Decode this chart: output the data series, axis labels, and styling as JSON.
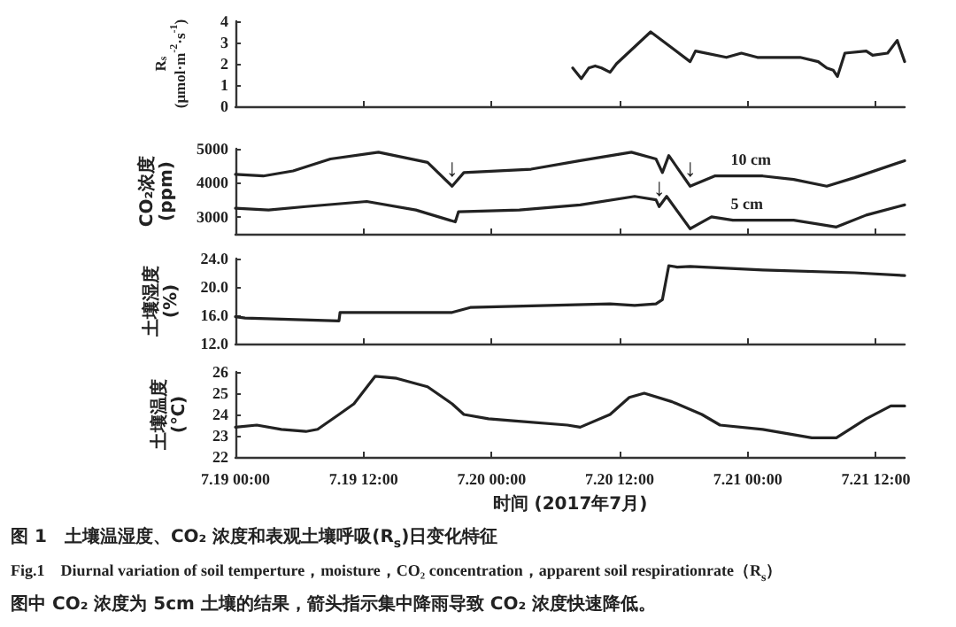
{
  "chart_data": [
    {
      "type": "line",
      "ylabel": "R$_{s}$ (μmol·m$^{-2}$·s$^{-1}$)",
      "xlim": [
        "2017-07-19T00:00",
        "2017-07-21T14:42"
      ],
      "xticks": [
        {
          "value": "2017-07-19T00:00",
          "label": null
        },
        {
          "value": "2017-07-19T12:00",
          "label": null
        },
        {
          "value": "2017-07-20T00:00",
          "label": null
        },
        {
          "value": "2017-07-20T12:00",
          "label": null
        },
        {
          "value": "2017-07-21T00:00",
          "label": null
        },
        {
          "value": "2017-07-21T12:00",
          "label": null
        }
      ],
      "ylim": [
        0,
        4
      ],
      "yticks": [
        0,
        1,
        2,
        3,
        4
      ],
      "tick_labels": "y",
      "marker": "none",
      "series": [
        {
          "color": "#222222",
          "x": [
            "2017-07-20T07:36",
            "2017-07-20T08:24",
            "2017-07-20T09:06",
            "2017-07-20T09:42",
            "2017-07-20T10:18",
            "2017-07-20T11:06",
            "2017-07-20T11:42",
            "2017-07-20T14:54",
            "2017-07-20T18:36",
            "2017-07-20T19:06",
            "2017-07-20T22:00",
            "2017-07-20T23:24",
            "2017-07-21T00:54",
            "2017-07-21T04:54",
            "2017-07-21T06:36",
            "2017-07-21T07:24",
            "2017-07-21T08:00",
            "2017-07-21T08:24",
            "2017-07-21T09:06",
            "2017-07-21T11:06",
            "2017-07-21T11:42",
            "2017-07-21T13:06",
            "2017-07-21T14:00",
            "2017-07-21T14:42"
          ],
          "values": [
            1.8,
            1.3,
            1.8,
            1.9,
            1.8,
            1.6,
            2.0,
            3.5,
            2.1,
            2.6,
            2.3,
            2.5,
            2.3,
            2.3,
            2.1,
            1.8,
            1.7,
            1.4,
            2.5,
            2.6,
            2.4,
            2.5,
            3.1,
            2.1
          ]
        }
      ]
    },
    {
      "type": "line",
      "ylabel": "CO₂浓度 (ppm)",
      "xlim": [
        "2017-07-19T00:00",
        "2017-07-21T14:42"
      ],
      "xticks": [
        {
          "value": "2017-07-19T00:00",
          "label": null
        },
        {
          "value": "2017-07-19T12:00",
          "label": null
        },
        {
          "value": "2017-07-20T00:00",
          "label": null
        },
        {
          "value": "2017-07-20T12:00",
          "label": null
        },
        {
          "value": "2017-07-21T00:00",
          "label": null
        },
        {
          "value": "2017-07-21T12:00",
          "label": null
        }
      ],
      "ylim": [
        2500,
        5000
      ],
      "yticks": [
        3000,
        4000,
        5000
      ],
      "tick_labels": "y",
      "marker": "none",
      "series": [
        {
          "name": "10 cm",
          "color": "#222222",
          "x": [
            "2017-07-19T00:00",
            "2017-07-19T02:36",
            "2017-07-19T05:24",
            "2017-07-19T08:54",
            "2017-07-19T13:24",
            "2017-07-19T18:00",
            "2017-07-19T20:18",
            "2017-07-19T21:24",
            "2017-07-20T03:42",
            "2017-07-20T08:18",
            "2017-07-20T13:06",
            "2017-07-20T15:24",
            "2017-07-20T16:00",
            "2017-07-20T16:36",
            "2017-07-20T18:36",
            "2017-07-20T20:54",
            "2017-07-21T01:24",
            "2017-07-21T04:18",
            "2017-07-21T07:24",
            "2017-07-21T10:00",
            "2017-07-21T14:42"
          ],
          "values": [
            4250,
            4200,
            4350,
            4700,
            4900,
            4600,
            3900,
            4300,
            4400,
            4650,
            4900,
            4700,
            4300,
            4800,
            3900,
            4200,
            4200,
            4100,
            3900,
            4150,
            4650
          ]
        },
        {
          "name": "5 cm",
          "color": "#222222",
          "x": [
            "2017-07-19T00:00",
            "2017-07-19T03:06",
            "2017-07-19T06:36",
            "2017-07-19T12:18",
            "2017-07-19T16:54",
            "2017-07-19T20:36",
            "2017-07-19T20:54",
            "2017-07-20T02:36",
            "2017-07-20T08:18",
            "2017-07-20T13:24",
            "2017-07-20T15:24",
            "2017-07-20T15:42",
            "2017-07-20T16:24",
            "2017-07-20T18:36",
            "2017-07-20T20:36",
            "2017-07-20T22:36",
            "2017-07-21T04:18",
            "2017-07-21T08:18",
            "2017-07-21T11:06",
            "2017-07-21T14:42"
          ],
          "values": [
            3250,
            3200,
            3300,
            3450,
            3200,
            2850,
            3150,
            3200,
            3350,
            3600,
            3500,
            3300,
            3600,
            2650,
            3000,
            2900,
            2900,
            2700,
            3050,
            3350
          ]
        }
      ],
      "annotations": [
        {
          "text": "↓",
          "x": "2017-07-19T20:18",
          "y": 4000
        },
        {
          "text": "↓",
          "x": "2017-07-20T15:42",
          "y": 3450
        },
        {
          "text": "↓",
          "x": "2017-07-20T18:36",
          "y": 4000
        }
      ]
    },
    {
      "type": "line",
      "ylabel": "土壤湿度 (%)",
      "xlim": [
        "2017-07-19T00:00",
        "2017-07-21T14:42"
      ],
      "xticks": [
        {
          "value": "2017-07-19T00:00",
          "label": null
        },
        {
          "value": "2017-07-19T12:00",
          "label": null
        },
        {
          "value": "2017-07-20T00:00",
          "label": null
        },
        {
          "value": "2017-07-20T12:00",
          "label": null
        },
        {
          "value": "2017-07-21T00:00",
          "label": null
        },
        {
          "value": "2017-07-21T12:00",
          "label": null
        }
      ],
      "ylim": [
        12,
        24
      ],
      "yticks": [
        {
          "value": 12,
          "label": "12.0"
        },
        {
          "value": 16,
          "label": "16.0"
        },
        {
          "value": 20,
          "label": "20.0"
        },
        {
          "value": 24,
          "label": "24.0"
        }
      ],
      "tick_labels": "y",
      "marker": "none",
      "series": [
        {
          "color": "#222222",
          "x": [
            "2017-07-19T00:00",
            "2017-07-19T00:54",
            "2017-07-19T09:42",
            "2017-07-19T09:48",
            "2017-07-19T20:18",
            "2017-07-19T22:00",
            "2017-07-20T05:24",
            "2017-07-20T11:06",
            "2017-07-20T13:24",
            "2017-07-20T15:24",
            "2017-07-20T16:00",
            "2017-07-20T16:36",
            "2017-07-20T17:24",
            "2017-07-20T18:36",
            "2017-07-21T01:24",
            "2017-07-21T10:00",
            "2017-07-21T14:42"
          ],
          "values": [
            15.8,
            15.6,
            15.2,
            16.4,
            16.4,
            17.1,
            17.4,
            17.6,
            17.4,
            17.6,
            18.2,
            23.0,
            22.8,
            22.9,
            22.4,
            22.0,
            21.6
          ]
        }
      ]
    },
    {
      "type": "line",
      "ylabel": "土壤温度 (℃)",
      "xlabel": "时间 (2017年7月)",
      "xlim": [
        "2017-07-19T00:00",
        "2017-07-21T14:42"
      ],
      "xticks": [
        {
          "value": "2017-07-19T00:00",
          "label": "7.19 00:00"
        },
        {
          "value": "2017-07-19T12:00",
          "label": "7.19 12:00"
        },
        {
          "value": "2017-07-20T00:00",
          "label": "7.20 00:00"
        },
        {
          "value": "2017-07-20T12:00",
          "label": "7.20 12:00"
        },
        {
          "value": "2017-07-21T00:00",
          "label": "7.21 00:00"
        },
        {
          "value": "2017-07-21T12:00",
          "label": "7.21 12:00"
        }
      ],
      "ylim": [
        22,
        26
      ],
      "yticks": [
        22,
        23,
        24,
        25,
        26
      ],
      "marker": "none",
      "series": [
        {
          "color": "#222222",
          "x": [
            "2017-07-19T00:00",
            "2017-07-19T02:00",
            "2017-07-19T04:18",
            "2017-07-19T06:36",
            "2017-07-19T07:42",
            "2017-07-19T09:42",
            "2017-07-19T11:06",
            "2017-07-19T13:06",
            "2017-07-19T15:06",
            "2017-07-19T18:00",
            "2017-07-19T20:18",
            "2017-07-19T21:24",
            "2017-07-19T23:42",
            "2017-07-20T02:00",
            "2017-07-20T07:06",
            "2017-07-20T08:18",
            "2017-07-20T11:06",
            "2017-07-20T12:54",
            "2017-07-20T14:18",
            "2017-07-20T16:54",
            "2017-07-20T19:42",
            "2017-07-20T21:24",
            "2017-07-21T01:24",
            "2017-07-21T06:00",
            "2017-07-21T08:18",
            "2017-07-21T11:06",
            "2017-07-21T13:24",
            "2017-07-21T14:42"
          ],
          "values": [
            23.4,
            23.5,
            23.3,
            23.2,
            23.3,
            24.0,
            24.5,
            25.8,
            25.7,
            25.3,
            24.5,
            24.0,
            23.8,
            23.7,
            23.5,
            23.4,
            24.0,
            24.8,
            25.0,
            24.6,
            24.0,
            23.5,
            23.3,
            22.9,
            22.9,
            23.8,
            24.4,
            24.4
          ]
        }
      ],
      "annotations": [
        "图 1　土壤温湿度、CO₂ 浓度和表观土壤呼吸(R$_{s}$)日变化特征",
        "Fig.1　Diurnal variation of soil temperture，moisture，CO₂ concentration，apparent soil respirationrate（R$_{s}$）",
        "图中 CO₂ 浓度为 5cm 土壤的结果，箭头指示集中降雨导致 CO₂ 浓度快速降低。"
      ]
    }
  ]
}
